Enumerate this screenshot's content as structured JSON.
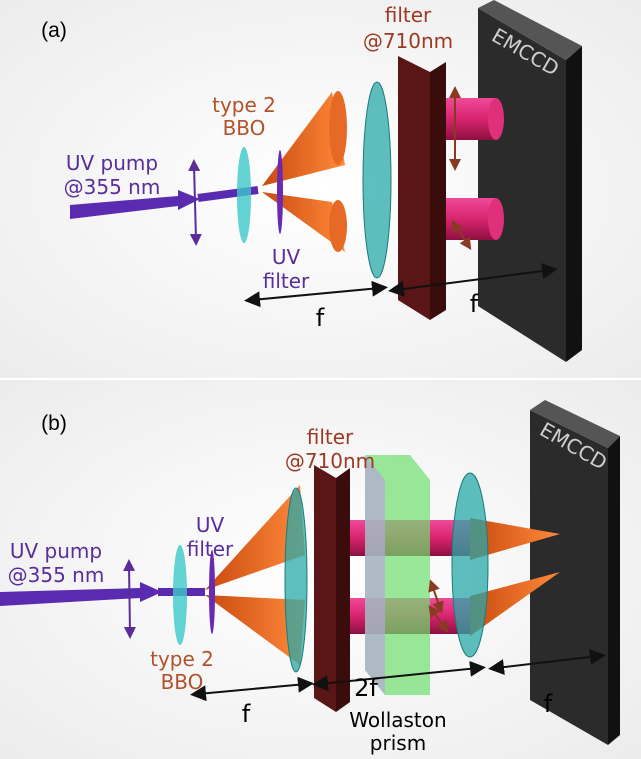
{
  "panels": [
    {
      "label": "(a)",
      "filter_label": [
        "filter",
        "@710nm"
      ],
      "camera": "EMCCD",
      "crystal_label": [
        "type 2",
        "BBO"
      ],
      "pump_label": [
        "UV pump",
        "@355 nm"
      ],
      "uv_filter_label": [
        "UV",
        "filter"
      ],
      "distances": [
        "f",
        "f"
      ]
    },
    {
      "label": "(b)",
      "filter_label": [
        "filter",
        "@710nm"
      ],
      "camera": "EMCCD",
      "uv_filter_label": [
        "UV",
        "filter"
      ],
      "pump_label": [
        "UV pump",
        "@355 nm"
      ],
      "crystal_label": [
        "type 2",
        "BBO"
      ],
      "distances": [
        "2f",
        "f",
        "f"
      ],
      "prism_label": [
        "Wollaston",
        "prism"
      ]
    }
  ]
}
